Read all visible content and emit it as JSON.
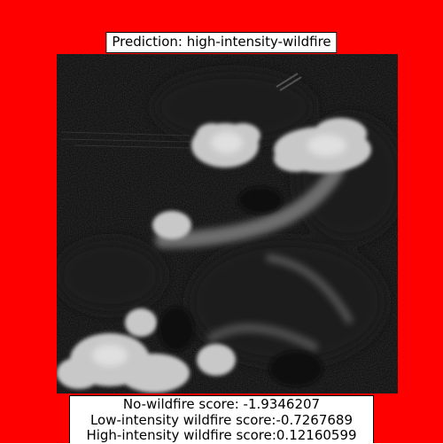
{
  "background_color": "#ff0000",
  "prediction": {
    "title": "Prediction: high-intensity-wildfire"
  },
  "image": {
    "description_icon": "grayscale-satellite-smoke-image"
  },
  "scores": {
    "no_wildfire": "No-wildfire score: -1.9346207",
    "low_intensity": "Low-intensity wildfire score:-0.7267689",
    "high_intensity": "High-intensity wildfire score:0.12160599"
  }
}
